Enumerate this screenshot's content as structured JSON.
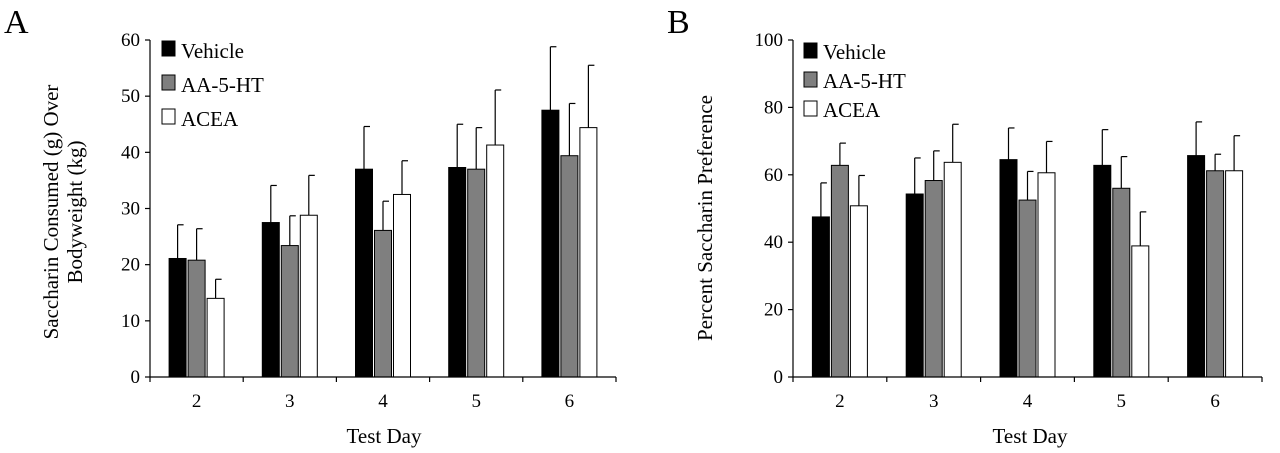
{
  "chart_data": [
    {
      "panel": "A",
      "type": "bar",
      "xlabel": "Test Day",
      "ylabel_lines": [
        "Saccharin Consumed (g) Over",
        "Bodyweight (kg)"
      ],
      "ylim": [
        0,
        60
      ],
      "yticks": [
        0,
        10,
        20,
        30,
        40,
        50,
        60
      ],
      "categories": [
        "2",
        "3",
        "4",
        "5",
        "6"
      ],
      "legend": "top-left",
      "series": [
        {
          "name": "Vehicle",
          "color": "#000000",
          "values": [
            21.1,
            27.5,
            37.0,
            37.3,
            47.5
          ],
          "error": [
            6.0,
            6.6,
            7.6,
            7.7,
            11.3
          ]
        },
        {
          "name": "AA-5-HT",
          "color": "#7f7f7f",
          "values": [
            20.8,
            23.4,
            26.1,
            37.0,
            39.4
          ],
          "error": [
            5.6,
            5.3,
            5.2,
            7.4,
            9.3
          ]
        },
        {
          "name": "ACEA",
          "color": "#ffffff",
          "values": [
            14.0,
            28.8,
            32.5,
            41.3,
            44.4
          ],
          "error": [
            3.4,
            7.1,
            6.0,
            9.8,
            11.1
          ]
        }
      ]
    },
    {
      "panel": "B",
      "type": "bar",
      "xlabel": "Test Day",
      "ylabel_lines": [
        "Percent Saccharin Preference"
      ],
      "ylim": [
        0,
        100
      ],
      "yticks": [
        0,
        20,
        40,
        60,
        80,
        100
      ],
      "categories": [
        "2",
        "3",
        "4",
        "5",
        "6"
      ],
      "legend": "top-left",
      "series": [
        {
          "name": "Vehicle",
          "color": "#000000",
          "values": [
            47.5,
            54.3,
            64.5,
            62.8,
            65.7
          ],
          "error": [
            10.1,
            10.7,
            9.4,
            10.6,
            10.0
          ]
        },
        {
          "name": "AA-5-HT",
          "color": "#7f7f7f",
          "values": [
            62.8,
            58.3,
            52.5,
            56.0,
            61.2
          ],
          "error": [
            6.6,
            8.8,
            8.5,
            9.4,
            4.9
          ]
        },
        {
          "name": "ACEA",
          "color": "#ffffff",
          "values": [
            50.8,
            63.7,
            60.6,
            38.9,
            61.2
          ],
          "error": [
            9.0,
            11.3,
            9.3,
            10.1,
            10.4
          ]
        }
      ]
    }
  ]
}
